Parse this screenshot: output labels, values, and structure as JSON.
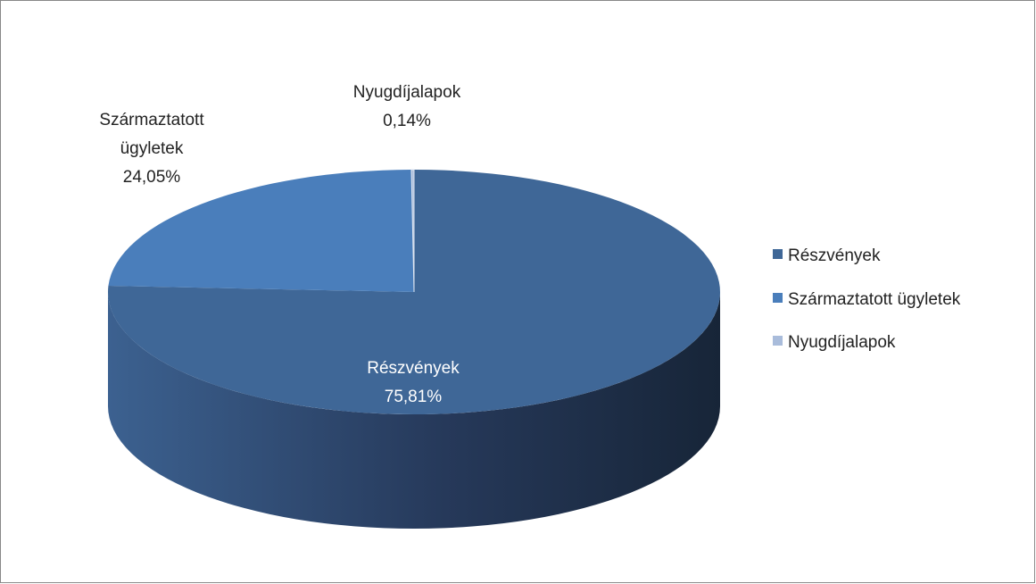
{
  "chart_data": {
    "type": "pie3d",
    "categories": [
      "Részvények",
      "Származtatott ügyletek",
      "Nyugdíjalapok"
    ],
    "values": [
      75.81,
      24.05,
      0.14
    ],
    "value_labels": [
      "75,81%",
      "24,05%",
      "0,14%"
    ],
    "colors": [
      "#3f6797",
      "#4a7ebb",
      "#a9bcdb"
    ],
    "legend": "right"
  }
}
